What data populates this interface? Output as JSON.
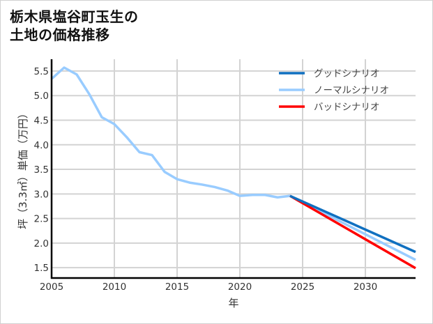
{
  "title": {
    "line1": "栃木県塩谷町玉生の",
    "line2": "土地の価格推移"
  },
  "chart_data": {
    "type": "line",
    "title": "栃木県塩谷町玉生の土地の価格推移",
    "xlabel": "年",
    "ylabel": "坪（3.3㎡）単価（万円）",
    "xlim": [
      2005,
      2034
    ],
    "ylim": [
      1.29,
      5.74
    ],
    "xticks": [
      2005,
      2010,
      2015,
      2020,
      2025,
      2030
    ],
    "yticks": [
      1.5,
      2.0,
      2.5,
      3.0,
      3.5,
      4.0,
      4.5,
      5.0,
      5.5
    ],
    "ytick_labels": [
      "1.5",
      "2.0",
      "2.5",
      "3.0",
      "3.5",
      "4.0",
      "4.5",
      "5.0",
      "5.5"
    ],
    "grid": true,
    "legend_position": "upper right",
    "series": [
      {
        "name": "グッドシナリオ",
        "color": "#1070c0",
        "x": [
          2024,
          2034
        ],
        "values": [
          2.96,
          1.82
        ]
      },
      {
        "name": "ノーマルシナリオ",
        "color": "#99ccff",
        "x": [
          2005,
          2006,
          2007,
          2008,
          2009,
          2010,
          2011,
          2012,
          2013,
          2014,
          2015,
          2016,
          2017,
          2018,
          2019,
          2020,
          2021,
          2022,
          2023,
          2024,
          2034
        ],
        "values": [
          5.34,
          5.57,
          5.43,
          5.03,
          4.56,
          4.42,
          4.15,
          3.85,
          3.79,
          3.45,
          3.3,
          3.23,
          3.19,
          3.14,
          3.07,
          2.96,
          2.98,
          2.98,
          2.93,
          2.96,
          1.66
        ]
      },
      {
        "name": "バッドシナリオ",
        "color": "#ff0000",
        "x": [
          2024,
          2034
        ],
        "values": [
          2.96,
          1.49
        ]
      }
    ]
  }
}
